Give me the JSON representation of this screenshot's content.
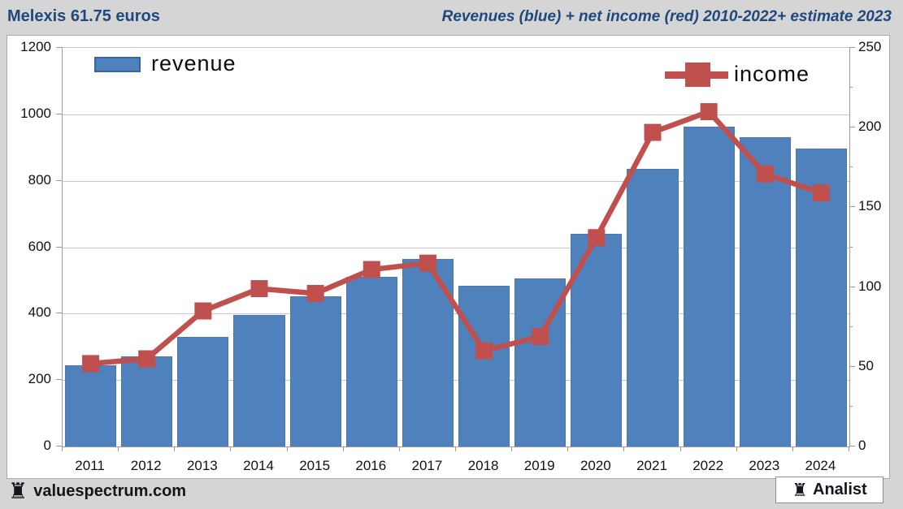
{
  "header": {
    "title": "Melexis 61.75 euros",
    "subtitle": "Revenues (blue) + net income (red) 2010-2022+ estimate 2023"
  },
  "legend": {
    "revenue_label": "revenue",
    "income_label": "income"
  },
  "footer": {
    "site": "valuespectrum.com",
    "badge": "Analist",
    "rook_icon": "♜"
  },
  "colors": {
    "bar_blue": "#4f81bd",
    "bar_border": "#4a77ad",
    "line_red": "#c0504d",
    "title_navy": "#1f497d",
    "background_gray": "#d5d5d5",
    "gridline_gray": "#c6c6c6",
    "axis_gray": "#9b9b9b"
  },
  "chart_data": {
    "type": "bar",
    "subtype": "bar+line combo, dual axis",
    "title": "Revenues (blue) + net income (red) 2010-2022+ estimate 2023",
    "categories": [
      "2011",
      "2012",
      "2013",
      "2014",
      "2015",
      "2016",
      "2017",
      "2018",
      "2019",
      "2020",
      "2021",
      "2022",
      "2023",
      "2024"
    ],
    "series": [
      {
        "name": "revenue",
        "type": "bar",
        "axis": "left",
        "values": [
          245,
          272,
          330,
          397,
          452,
          510,
          565,
          485,
          505,
          640,
          835,
          962,
          932,
          897
        ]
      },
      {
        "name": "income",
        "type": "line",
        "axis": "right",
        "marker": "square",
        "values": [
          52,
          55,
          85,
          99,
          96,
          111,
          115,
          60,
          69,
          131,
          197,
          210,
          171,
          159
        ]
      }
    ],
    "left_axis": {
      "min": 0,
      "max": 1200,
      "ticks": [
        0,
        200,
        400,
        600,
        800,
        1000,
        1200
      ]
    },
    "right_axis": {
      "min": 0,
      "max": 250,
      "ticks": [
        0,
        50,
        100,
        150,
        200,
        250
      ],
      "minor_step": 25
    },
    "grid": true,
    "legend_position": "inside-top"
  }
}
